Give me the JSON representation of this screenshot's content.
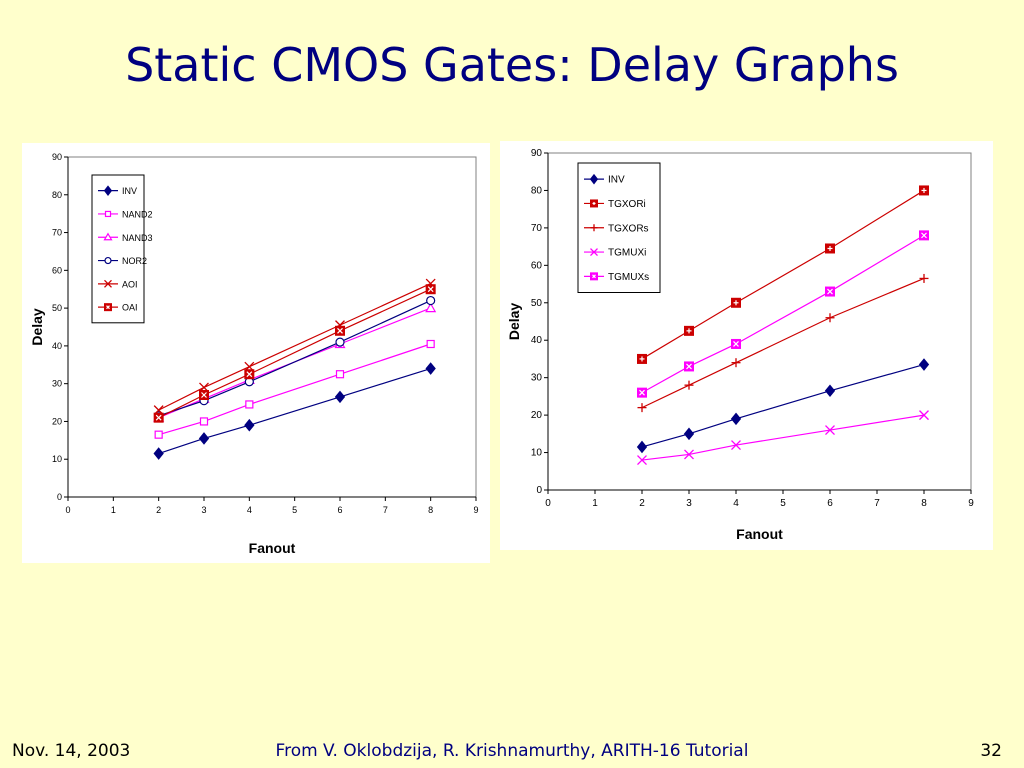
{
  "slide": {
    "title": "Static CMOS Gates: Delay Graphs",
    "footer_date": "Nov. 14, 2003",
    "footer_credit": "From V. Oklobdzija, R. Krishnamurthy, ARITH-16 Tutorial",
    "page_number": "32"
  },
  "chart_data": [
    {
      "type": "line",
      "title": "",
      "xlabel": "Fanout",
      "ylabel": "Delay",
      "xlim": [
        0,
        9
      ],
      "ylim": [
        0,
        90
      ],
      "x_ticks": [
        0,
        1,
        2,
        3,
        4,
        5,
        6,
        7,
        8,
        9
      ],
      "y_ticks": [
        0,
        10,
        20,
        30,
        40,
        50,
        60,
        70,
        80,
        90
      ],
      "x": [
        2,
        3,
        4,
        6,
        8
      ],
      "legend_position": "top-left",
      "grid": false,
      "series": [
        {
          "name": "INV",
          "values": [
            11.5,
            15.5,
            19,
            26.5,
            34
          ],
          "color": "#000080",
          "marker": "diamond"
        },
        {
          "name": "NAND2",
          "values": [
            16.5,
            20,
            24.5,
            32.5,
            40.5
          ],
          "color": "#ff00ff",
          "marker": "square-open"
        },
        {
          "name": "NAND3",
          "values": [
            21,
            26,
            31,
            40.5,
            50
          ],
          "color": "#ff00ff",
          "marker": "triangle-open"
        },
        {
          "name": "NOR2",
          "values": [
            21.5,
            25.5,
            30.5,
            41,
            52
          ],
          "color": "#000080",
          "marker": "circle-open"
        },
        {
          "name": "AOI",
          "values": [
            23,
            29,
            34.5,
            45.5,
            56.5
          ],
          "color": "#cc0000",
          "marker": "x"
        },
        {
          "name": "OAI",
          "values": [
            21,
            27,
            32.5,
            44,
            55
          ],
          "color": "#cc0000",
          "marker": "box-x"
        }
      ]
    },
    {
      "type": "line",
      "title": "",
      "xlabel": "Fanout",
      "ylabel": "Delay",
      "xlim": [
        0,
        9
      ],
      "ylim": [
        0,
        90
      ],
      "x_ticks": [
        0,
        1,
        2,
        3,
        4,
        5,
        6,
        7,
        8,
        9
      ],
      "y_ticks": [
        0,
        10,
        20,
        30,
        40,
        50,
        60,
        70,
        80,
        90
      ],
      "x": [
        2,
        3,
        4,
        6,
        8
      ],
      "legend_position": "top-left",
      "grid": false,
      "series": [
        {
          "name": "INV",
          "values": [
            11.5,
            15,
            19,
            26.5,
            33.5
          ],
          "color": "#000080",
          "marker": "diamond"
        },
        {
          "name": "TGXORi",
          "values": [
            35,
            42.5,
            50,
            64.5,
            80
          ],
          "color": "#cc0000",
          "marker": "box-plus"
        },
        {
          "name": "TGXORs",
          "values": [
            22,
            28,
            34,
            46,
            56.5
          ],
          "color": "#cc0000",
          "marker": "plus"
        },
        {
          "name": "TGMUXi",
          "values": [
            8,
            9.5,
            12,
            16,
            20
          ],
          "color": "#ff00ff",
          "marker": "x"
        },
        {
          "name": "TGMUXs",
          "values": [
            26,
            33,
            39,
            53,
            68
          ],
          "color": "#ff00ff",
          "marker": "box-x"
        }
      ]
    }
  ]
}
